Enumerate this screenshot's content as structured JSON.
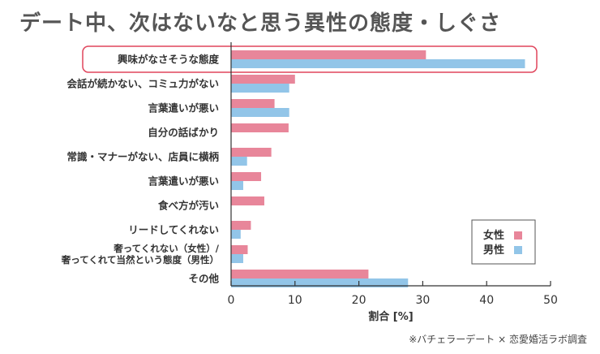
{
  "chart_data": {
    "type": "bar",
    "orientation": "horizontal",
    "title": "デート中、次はないなと思う異性の態度・しぐさ",
    "xlabel": "割合 [%]",
    "xlim": [
      0,
      50
    ],
    "xticks": [
      0,
      10,
      20,
      30,
      40,
      50
    ],
    "grid": false,
    "legend_position": "bottom-right",
    "categories": [
      "興味がなさそうな態度",
      "会話が続かない、コミュ力がない",
      "言葉遣いが悪い",
      "自分の話ばかり",
      "常識・マナーがない、店員に横柄",
      "言葉遣いが悪い",
      "食べ方が汚い",
      "リードしてくれない",
      "奢ってくれない（女性）/\n奢ってくれて当然という態度（男性）",
      "その他"
    ],
    "highlighted_category_index": 0,
    "series": [
      {
        "name": "女性",
        "color": "#e8869a",
        "values": [
          30.5,
          10,
          6.8,
          9,
          6.3,
          4.7,
          5.2,
          3.1,
          2.6,
          21.5
        ]
      },
      {
        "name": "男性",
        "color": "#92c5e8",
        "values": [
          46,
          9.1,
          9.1,
          null,
          2.5,
          1.9,
          null,
          1.5,
          1.9,
          27.7
        ]
      }
    ]
  },
  "colors": {
    "highlight_border": "#e0455c",
    "axis": "#333333",
    "title": "#555555"
  },
  "source_note": "※バチェラーデート × 恋愛婚活ラボ調査"
}
